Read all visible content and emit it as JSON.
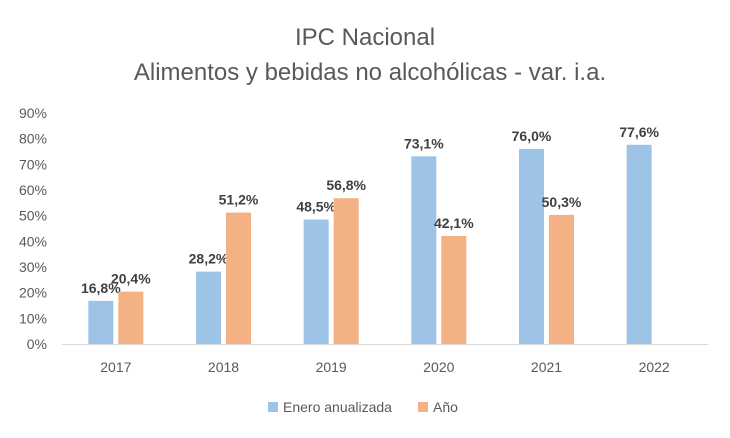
{
  "chart_data": {
    "type": "bar",
    "title": [
      "IPC Nacional",
      "Alimentos y bebidas no alcohólicas - var. i.a."
    ],
    "xlabel": "",
    "ylabel": "",
    "categories": [
      "2017",
      "2018",
      "2019",
      "2020",
      "2021",
      "2022"
    ],
    "series": [
      {
        "name": "Enero anualizada",
        "color": "#9DC3E6",
        "values": [
          16.8,
          28.2,
          48.5,
          73.1,
          76.0,
          77.6
        ],
        "labels": [
          "16,8%",
          "28,2%",
          "48,5%",
          "73,1%",
          "76,0%",
          "77,6%"
        ]
      },
      {
        "name": "Año",
        "color": "#F4B183",
        "values": [
          20.4,
          51.2,
          56.8,
          42.1,
          50.3,
          null
        ],
        "labels": [
          "20,4%",
          "51,2%",
          "56,8%",
          "42,1%",
          "50,3%",
          null
        ]
      }
    ],
    "ylim": [
      0,
      90
    ],
    "yticks": [
      0,
      10,
      20,
      30,
      40,
      50,
      60,
      70,
      80,
      90
    ],
    "ytick_labels": [
      "0%",
      "10%",
      "20%",
      "30%",
      "40%",
      "50%",
      "60%",
      "70%",
      "80%",
      "90%"
    ],
    "grid": false,
    "legend": "bottom"
  }
}
